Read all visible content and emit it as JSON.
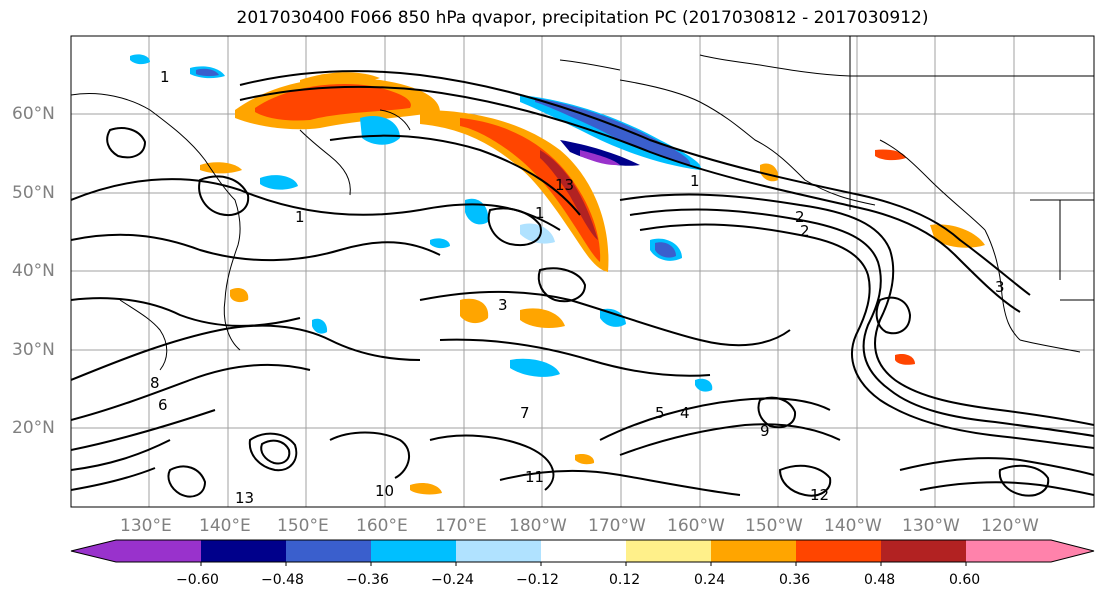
{
  "title": "2017030400 F066 850 hPa qvapor, precipitation PC (2017030812 - 2017030912)",
  "lat_labels": [
    "60°N",
    "50°N",
    "40°N",
    "30°N",
    "20°N"
  ],
  "lon_labels": [
    "130°E",
    "140°E",
    "150°E",
    "160°E",
    "170°E",
    "180°W",
    "170°W",
    "160°W",
    "150°W",
    "140°W",
    "130°W",
    "120°W"
  ],
  "colorbar": {
    "ticks": [
      "−0.60",
      "−0.48",
      "−0.36",
      "−0.24",
      "−0.12",
      "0.12",
      "0.24",
      "0.36",
      "0.48",
      "0.60"
    ],
    "colors": [
      "#9932cc",
      "#00008b",
      "#3a5fcd",
      "#00bfff",
      "#b0e2ff",
      "#ffffff",
      "#fff08a",
      "#ffa500",
      "#ff4500",
      "#b22222",
      "#ff82ab"
    ]
  },
  "contour_labels": [
    "1",
    "1",
    "1",
    "1",
    "2",
    "2",
    "3",
    "4",
    "5",
    "6",
    "7",
    "8",
    "9",
    "10",
    "11",
    "12",
    "13",
    "13",
    "3"
  ]
}
